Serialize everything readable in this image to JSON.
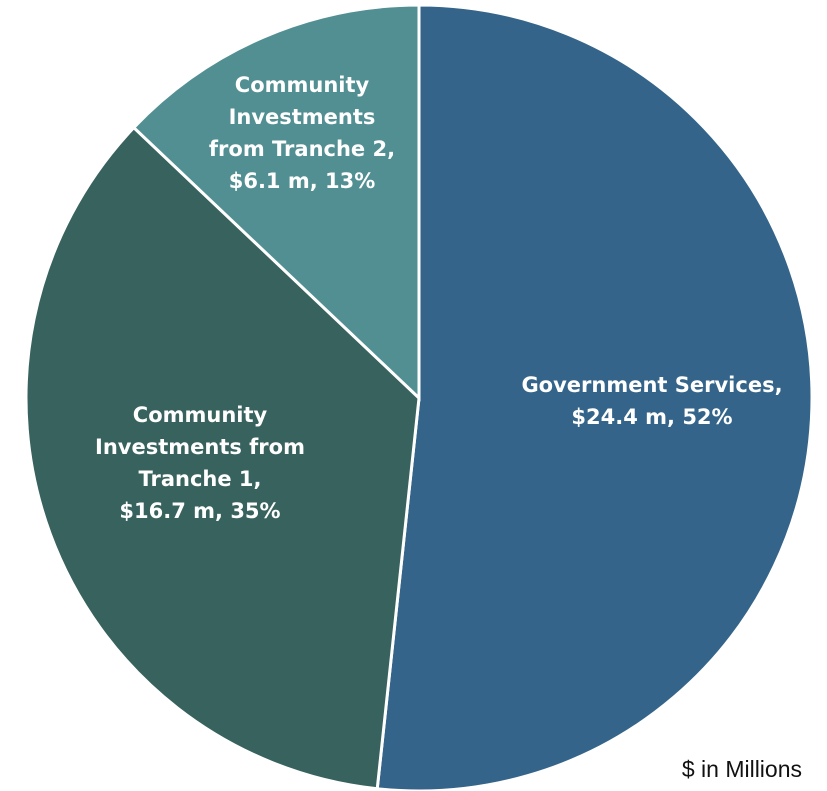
{
  "chart_data": {
    "type": "pie",
    "unit_note": "$ in Millions",
    "slices": [
      {
        "name": "Government Services",
        "value": 24.4,
        "percent": 52,
        "color": "#346489",
        "label_lines": [
          "Government Services,",
          "$24.4 m, 52%"
        ]
      },
      {
        "name": "Community Investments from Tranche 1",
        "value": 16.7,
        "percent": 35,
        "color": "#37625e",
        "label_lines": [
          "Community",
          "Investments from",
          "Tranche 1,",
          "$16.7 m, 35%"
        ]
      },
      {
        "name": "Community Investments from Tranche 2",
        "value": 6.1,
        "percent": 13,
        "color": "#518f93",
        "label_lines": [
          "Community",
          "Investments",
          "from Tranche 2,",
          "$6.1 m, 13%"
        ]
      }
    ]
  }
}
